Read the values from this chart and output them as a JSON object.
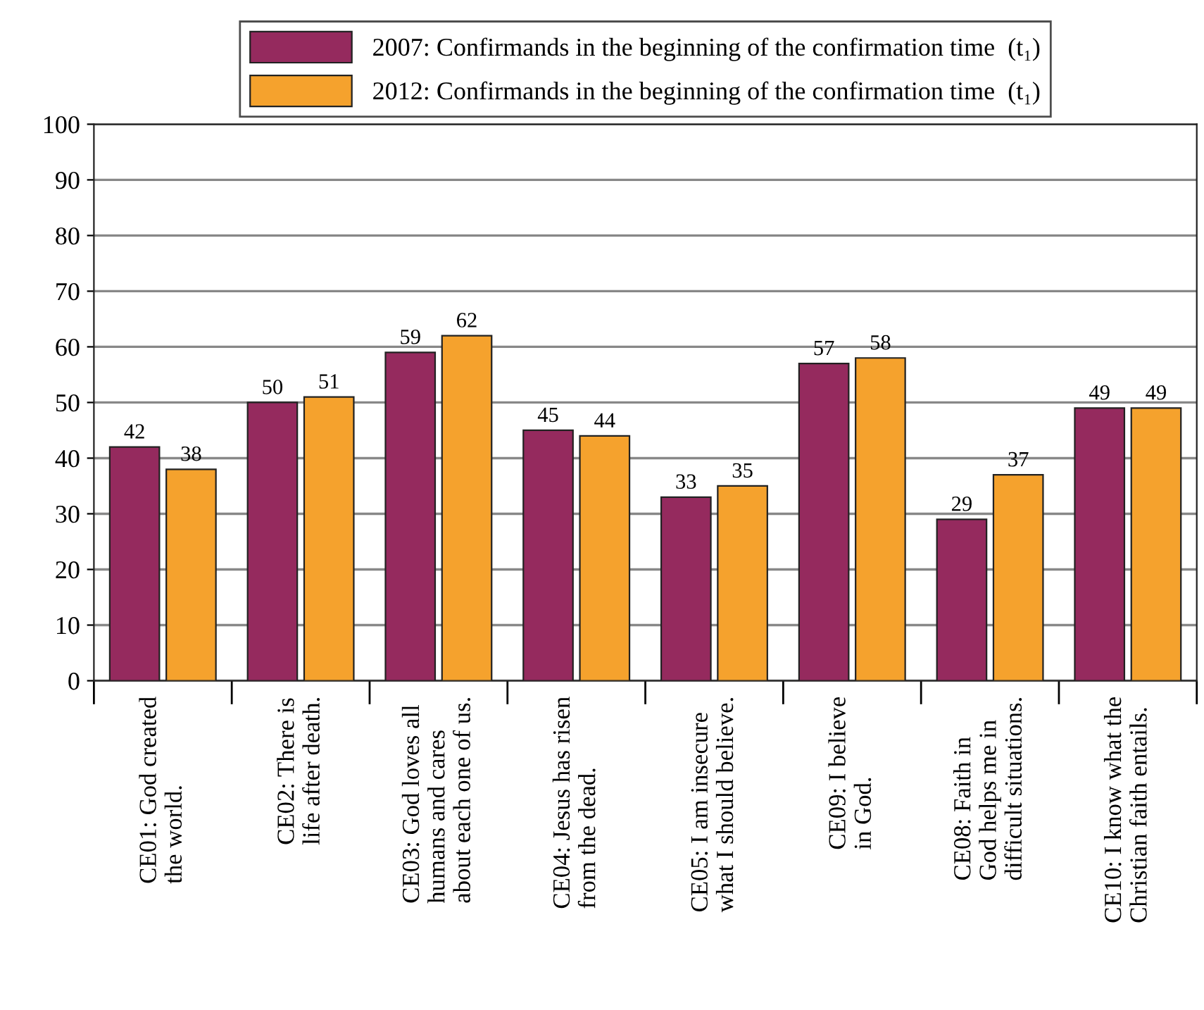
{
  "chart_data": {
    "type": "bar",
    "categories": [
      "CE01: God created\nthe world.",
      "CE02: There is\nlife after death.",
      "CE03: God loves all\nhumans and cares\nabout each one of us.",
      "CE04: Jesus has risen\nfrom the dead.",
      "CE05: I am insecure\nwhat I should believe.",
      "CE09: I believe\nin God.",
      "CE08: Faith in\nGod helps me in\ndifficult situations.",
      "CE10: I know what the\nChristian faith entails."
    ],
    "series": [
      {
        "name": "2007: Confirmands in the beginning of the confirmation time  (t₁)",
        "color": "#952a5e",
        "values": [
          42,
          50,
          59,
          45,
          33,
          57,
          29,
          49
        ]
      },
      {
        "name": "2012: Confirmands in the beginning of the confirmation time  (t₁)",
        "color": "#f5a22d",
        "values": [
          38,
          51,
          62,
          44,
          35,
          58,
          37,
          49
        ]
      }
    ],
    "ylim": [
      0,
      100
    ],
    "yticks": [
      0,
      10,
      20,
      30,
      40,
      50,
      60,
      70,
      80,
      90,
      100
    ],
    "grid": "y",
    "legend": "top",
    "data_labels": true
  }
}
